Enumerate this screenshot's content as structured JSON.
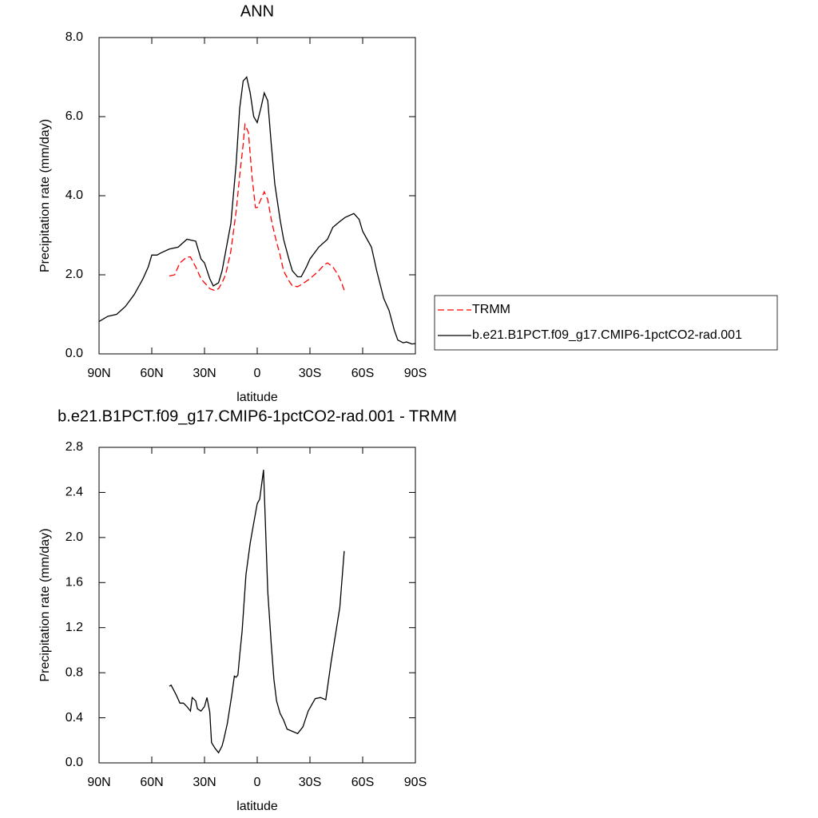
{
  "chart_data": [
    {
      "type": "line",
      "title": "ANN",
      "xlabel": "latitude",
      "ylabel": "Precipitation rate (mm/day)",
      "xlim": [
        90,
        -90
      ],
      "xticks": [
        {
          "value": 90,
          "label": "90N"
        },
        {
          "value": 60,
          "label": "60N"
        },
        {
          "value": 30,
          "label": "30N"
        },
        0,
        {
          "value": -30,
          "label": "30S"
        },
        {
          "value": -60,
          "label": "60S"
        },
        {
          "value": -90,
          "label": "90S"
        }
      ],
      "ylim": [
        0,
        8
      ],
      "yticks": [
        {
          "value": 0,
          "label": "0.0"
        },
        {
          "value": 2,
          "label": "2.0"
        },
        {
          "value": 4,
          "label": "4.0"
        },
        {
          "value": 6,
          "label": "6.0"
        },
        {
          "value": 8,
          "label": "8.0"
        }
      ],
      "legend": "right",
      "series": [
        {
          "name": "TRMM",
          "color": "#ff0000",
          "dash": true,
          "x": [
            50,
            47,
            44,
            40,
            38,
            35,
            32,
            30,
            27,
            24,
            22,
            20,
            18,
            15,
            12,
            10,
            8,
            7,
            5,
            3,
            1,
            0,
            -2,
            -4,
            -6,
            -8,
            -10,
            -13,
            -15,
            -18,
            -20,
            -23,
            -25,
            -30,
            -35,
            -38,
            -40,
            -43,
            -46,
            -48,
            -50
          ],
          "values": [
            1.97,
            2.0,
            2.3,
            2.45,
            2.45,
            2.2,
            1.9,
            1.8,
            1.65,
            1.6,
            1.65,
            1.8,
            2.0,
            2.6,
            3.6,
            4.5,
            5.3,
            5.8,
            5.6,
            4.5,
            3.7,
            3.7,
            3.9,
            4.1,
            3.9,
            3.4,
            3.0,
            2.5,
            2.1,
            1.85,
            1.72,
            1.7,
            1.75,
            1.9,
            2.1,
            2.25,
            2.3,
            2.2,
            2.0,
            1.8,
            1.55
          ]
        },
        {
          "name": "b.e21.B1PCT.f09_g17.CMIP6-1pctCO2-rad.001",
          "color": "#000000",
          "dash": false,
          "x": [
            90,
            85,
            80,
            75,
            70,
            65,
            62,
            60,
            57,
            55,
            50,
            45,
            40,
            35,
            32,
            30,
            27,
            25,
            22,
            20,
            15,
            12,
            10,
            8,
            6,
            4,
            2,
            0,
            -2,
            -4,
            -6,
            -8,
            -10,
            -13,
            -15,
            -18,
            -20,
            -23,
            -25,
            -28,
            -30,
            -35,
            -40,
            -43,
            -47,
            -50,
            -55,
            -58,
            -60,
            -65,
            -68,
            -72,
            -75,
            -78,
            -80,
            -83,
            -85,
            -88,
            -90
          ],
          "values": [
            0.82,
            0.95,
            1.0,
            1.2,
            1.5,
            1.9,
            2.2,
            2.5,
            2.5,
            2.55,
            2.65,
            2.7,
            2.9,
            2.85,
            2.4,
            2.3,
            1.9,
            1.72,
            1.8,
            2.1,
            3.3,
            4.8,
            6.2,
            6.9,
            7.0,
            6.6,
            6.0,
            5.85,
            6.2,
            6.6,
            6.4,
            5.3,
            4.3,
            3.4,
            2.9,
            2.4,
            2.1,
            1.95,
            1.95,
            2.2,
            2.4,
            2.7,
            2.9,
            3.2,
            3.35,
            3.45,
            3.55,
            3.4,
            3.1,
            2.7,
            2.1,
            1.4,
            1.1,
            0.6,
            0.35,
            0.28,
            0.3,
            0.25,
            0.26
          ]
        }
      ]
    },
    {
      "type": "line",
      "title": "b.e21.B1PCT.f09_g17.CMIP6-1pctCO2-rad.001 - TRMM",
      "xlabel": "latitude",
      "ylabel": "Precipitation rate (mm/day)",
      "xlim": [
        90,
        -90
      ],
      "xticks": [
        {
          "value": 90,
          "label": "90N"
        },
        {
          "value": 60,
          "label": "60N"
        },
        {
          "value": 30,
          "label": "30N"
        },
        0,
        {
          "value": -30,
          "label": "30S"
        },
        {
          "value": -60,
          "label": "60S"
        },
        {
          "value": -90,
          "label": "90S"
        }
      ],
      "ylim": [
        0,
        2.8
      ],
      "yticks": [
        {
          "value": 0,
          "label": "0.0"
        },
        0.4,
        0.8,
        1.2,
        1.6,
        {
          "value": 2,
          "label": "2.0"
        },
        2.4,
        2.8
      ],
      "series": [
        {
          "color": "#000000",
          "dash": false,
          "x": [
            50,
            49,
            47,
            46,
            44,
            42,
            40,
            38,
            37,
            35,
            34,
            32,
            30,
            28.6,
            27,
            26,
            24,
            22,
            20,
            19,
            17,
            14.5,
            13,
            12,
            11,
            10,
            8.6,
            6.4,
            4,
            2.3,
            0,
            -1.4,
            -3.6,
            -6,
            -8,
            -9.5,
            -11,
            -13,
            -15,
            -17,
            -20,
            -23,
            -26,
            -29,
            -33,
            -36,
            -39,
            -42,
            -47,
            -49.5
          ],
          "values": [
            0.68,
            0.69,
            0.63,
            0.6,
            0.53,
            0.53,
            0.5,
            0.46,
            0.58,
            0.55,
            0.48,
            0.46,
            0.5,
            0.58,
            0.45,
            0.18,
            0.13,
            0.09,
            0.15,
            0.21,
            0.35,
            0.6,
            0.77,
            0.76,
            0.78,
            0.95,
            1.17,
            1.67,
            1.95,
            2.1,
            2.3,
            2.34,
            2.6,
            1.52,
            1.05,
            0.74,
            0.55,
            0.44,
            0.38,
            0.3,
            0.28,
            0.26,
            0.32,
            0.46,
            0.57,
            0.58,
            0.56,
            0.89,
            1.38,
            1.88
          ]
        }
      ]
    }
  ]
}
